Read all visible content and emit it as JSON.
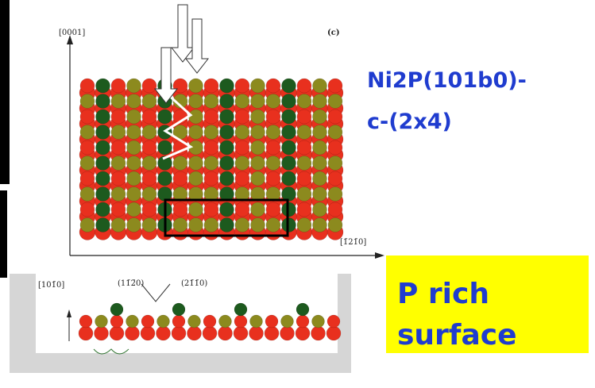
{
  "figure": {
    "axis_top_label": "[0001]",
    "panel_label": "(c)",
    "axis_right_label": "[1̄21̄0]",
    "bottom_axis_label": "[101̄0]",
    "plane_1": "(11̄2̄0)",
    "plane_2": "(21̄1̄0)"
  },
  "title_lines": [
    "Ni2P(101b0)-",
    "c-(2x4)"
  ],
  "callout_lines": [
    "P rich",
    "surface"
  ]
}
